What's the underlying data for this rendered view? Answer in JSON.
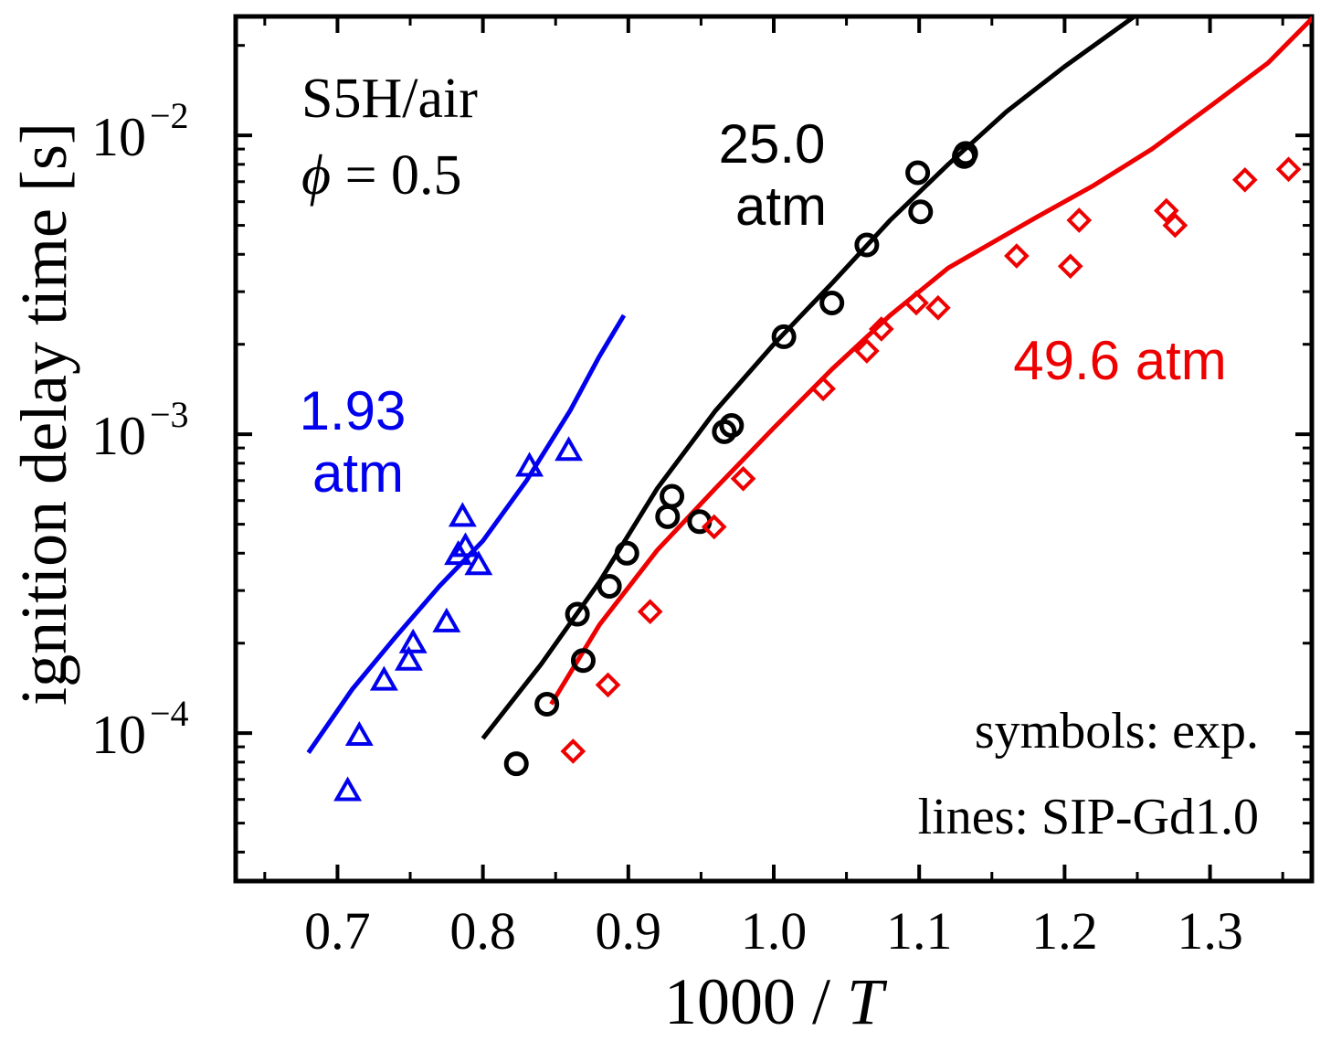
{
  "chart_data": {
    "type": "scatter",
    "ylabel": "ignition delay time [s]",
    "xlabel_prefix": "1000 / ",
    "xlabel_var": "T",
    "xlim": [
      0.63,
      1.37
    ],
    "ylim": [
      3.2e-05,
      0.025
    ],
    "yscale": "log",
    "grid": false,
    "x_ticks": [
      "0.7",
      "0.8",
      "0.9",
      "1.0",
      "1.1",
      "1.2",
      "1.3"
    ],
    "y_ticks": [
      {
        "base": "10",
        "exp": "−2",
        "value": 0.01
      },
      {
        "base": "10",
        "exp": "−3",
        "value": 0.001
      },
      {
        "base": "10",
        "exp": "−4",
        "value": 0.0001
      }
    ],
    "annotations": {
      "mixture": "S5H/air",
      "phi_symbol": "ϕ",
      "phi_value": " = 0.5",
      "note_symbols": "symbols: exp.",
      "note_lines": "lines: SIP-Gd1.0"
    },
    "series": [
      {
        "label_lines": [
          "1.93",
          "atm"
        ],
        "color": "#0000ee",
        "marker": "triangle",
        "points": [
          [
            0.707,
            6.4e-05
          ],
          [
            0.715,
            9.8e-05
          ],
          [
            0.732,
            0.00015
          ],
          [
            0.749,
            0.000175
          ],
          [
            0.752,
            0.0002
          ],
          [
            0.775,
            0.000235
          ],
          [
            0.783,
            0.000395
          ],
          [
            0.788,
            0.00042
          ],
          [
            0.797,
            0.000365
          ],
          [
            0.786,
            0.00053
          ],
          [
            0.832,
            0.00078
          ],
          [
            0.859,
            0.00088
          ]
        ],
        "line": [
          [
            0.68,
            8.6e-05
          ],
          [
            0.71,
            0.00014
          ],
          [
            0.74,
            0.00021
          ],
          [
            0.77,
            0.00031
          ],
          [
            0.8,
            0.00044
          ],
          [
            0.83,
            0.0007
          ],
          [
            0.86,
            0.0012
          ],
          [
            0.88,
            0.00182
          ],
          [
            0.897,
            0.0025
          ]
        ]
      },
      {
        "label_lines": [
          "25.0",
          "atm"
        ],
        "color": "#000000",
        "marker": "circle",
        "points": [
          [
            0.823,
            7.9e-05
          ],
          [
            0.844,
            0.000125
          ],
          [
            0.865,
            0.00025
          ],
          [
            0.869,
            0.000175
          ],
          [
            0.887,
            0.00031
          ],
          [
            0.899,
            0.0004
          ],
          [
            0.927,
            0.00053
          ],
          [
            0.93,
            0.00062
          ],
          [
            0.949,
            0.00051
          ],
          [
            0.966,
            0.00102
          ],
          [
            0.971,
            0.00107
          ],
          [
            1.007,
            0.00212
          ],
          [
            1.04,
            0.00275
          ],
          [
            1.064,
            0.0043
          ],
          [
            1.099,
            0.0075
          ],
          [
            1.101,
            0.00555
          ],
          [
            1.131,
            0.0085
          ],
          [
            1.132,
            0.0087
          ]
        ],
        "line": [
          [
            0.8,
            9.6e-05
          ],
          [
            0.84,
            0.00017
          ],
          [
            0.88,
            0.00032
          ],
          [
            0.92,
            0.00066
          ],
          [
            0.96,
            0.0012
          ],
          [
            1.0,
            0.002
          ],
          [
            1.04,
            0.0032
          ],
          [
            1.08,
            0.0052
          ],
          [
            1.12,
            0.008
          ],
          [
            1.16,
            0.012
          ],
          [
            1.2,
            0.017
          ],
          [
            1.248,
            0.025
          ]
        ]
      },
      {
        "label_lines": [
          "49.6 atm"
        ],
        "color": "#ee0000",
        "marker": "diamond",
        "points": [
          [
            0.862,
            8.7e-05
          ],
          [
            0.886,
            0.000145
          ],
          [
            0.915,
            0.000255
          ],
          [
            0.959,
            0.00049
          ],
          [
            0.979,
            0.00071
          ],
          [
            1.034,
            0.00142
          ],
          [
            1.064,
            0.0019
          ],
          [
            1.074,
            0.00225
          ],
          [
            1.098,
            0.00275
          ],
          [
            1.113,
            0.00265
          ],
          [
            1.167,
            0.00395
          ],
          [
            1.204,
            0.00365
          ],
          [
            1.21,
            0.0052
          ],
          [
            1.27,
            0.0056
          ],
          [
            1.276,
            0.005
          ],
          [
            1.324,
            0.0071
          ],
          [
            1.354,
            0.0077
          ]
        ],
        "line": [
          [
            0.847,
            0.000125
          ],
          [
            0.88,
            0.00023
          ],
          [
            0.92,
            0.00041
          ],
          [
            0.96,
            0.00066
          ],
          [
            1.0,
            0.00105
          ],
          [
            1.04,
            0.00165
          ],
          [
            1.08,
            0.0025
          ],
          [
            1.12,
            0.0036
          ],
          [
            1.18,
            0.0053
          ],
          [
            1.22,
            0.0068
          ],
          [
            1.26,
            0.009
          ],
          [
            1.3,
            0.0125
          ],
          [
            1.34,
            0.0175
          ],
          [
            1.375,
            0.026
          ]
        ]
      }
    ]
  }
}
